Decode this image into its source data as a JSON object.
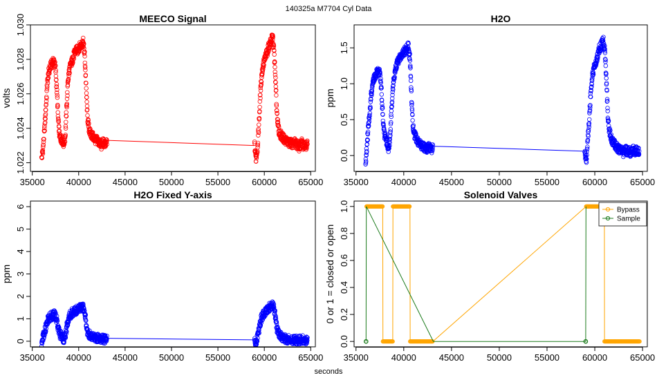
{
  "figure": {
    "title": "140325a    M7704   Cyl Data",
    "xlabel": "seconds"
  },
  "colors": {
    "meeco": "#ff0000",
    "h2o": "#0000ff",
    "bypass": "#ffa500",
    "sample": "#1a7a1a",
    "frame": "#000000"
  },
  "chart_data": [
    {
      "id": "meeco",
      "type": "scatter",
      "title": "MEECO Signal",
      "ylabel": "volts",
      "xlim": [
        34800,
        65500
      ],
      "ylim": [
        1.0215,
        1.03
      ],
      "xticks": [
        35000,
        40000,
        45000,
        50000,
        55000,
        60000,
        65000
      ],
      "yticks": [
        1.022,
        1.024,
        1.026,
        1.028,
        1.03
      ],
      "ytick_decimals": 3,
      "color_key": "meeco",
      "series": [
        {
          "name": "MEECO",
          "x": [
            36000,
            36150,
            36300,
            36450,
            36600,
            36750,
            36900,
            37050,
            37200,
            37350,
            37500,
            37650,
            37800,
            37950,
            38100,
            38250,
            38400,
            38550,
            38700,
            38850,
            39000,
            39150,
            39300,
            39450,
            39600,
            39750,
            39900,
            40050,
            40200,
            40350,
            40500,
            40650,
            40800,
            40950,
            41100,
            41250,
            41400,
            41550,
            41700,
            41850,
            42000,
            42150,
            42300,
            42450,
            42600,
            42750,
            42900,
            43050,
            58950,
            59100,
            59250,
            59400,
            59550,
            59700,
            59850,
            60000,
            60150,
            60300,
            60450,
            60600,
            60750,
            60900,
            61050,
            61200,
            61350,
            61500,
            61650,
            61800,
            61950,
            62100,
            62250,
            62400,
            62550,
            62700,
            62850,
            63000,
            63150,
            63300,
            63450,
            63600,
            63750,
            63900,
            64050,
            64200,
            64350,
            64500,
            64650
          ],
          "y": [
            1.0222,
            1.0228,
            1.0238,
            1.025,
            1.0265,
            1.0272,
            1.0275,
            1.0277,
            1.0278,
            1.0279,
            1.0275,
            1.0262,
            1.0244,
            1.0235,
            1.0234,
            1.0233,
            1.0231,
            1.0235,
            1.0252,
            1.0268,
            1.0274,
            1.0277,
            1.0279,
            1.0282,
            1.0284,
            1.0286,
            1.0285,
            1.0287,
            1.0288,
            1.0289,
            1.029,
            1.0282,
            1.0264,
            1.0246,
            1.024,
            1.0237,
            1.0236,
            1.0235,
            1.0234,
            1.0233,
            1.0233,
            1.0232,
            1.0231,
            1.023,
            1.0232,
            1.0231,
            1.023,
            1.0233,
            1.023,
            1.0222,
            1.0228,
            1.024,
            1.0258,
            1.027,
            1.0276,
            1.0279,
            1.0282,
            1.0284,
            1.0287,
            1.0289,
            1.0291,
            1.0293,
            1.0285,
            1.0268,
            1.025,
            1.024,
            1.0237,
            1.0236,
            1.0235,
            1.0234,
            1.0233,
            1.0233,
            1.0232,
            1.0231,
            1.0232,
            1.023,
            1.0231,
            1.0232,
            1.023,
            1.0231,
            1.0229,
            1.023,
            1.0232,
            1.023,
            1.0231,
            1.023,
            1.0231
          ]
        }
      ]
    },
    {
      "id": "h2o",
      "type": "scatter",
      "title": "H2O",
      "ylabel": "ppm",
      "xlim": [
        34800,
        65500
      ],
      "ylim": [
        -0.22,
        1.82
      ],
      "xticks": [
        35000,
        40000,
        45000,
        50000,
        55000,
        60000,
        65000
      ],
      "yticks": [
        0.0,
        0.5,
        1.0,
        1.5
      ],
      "ytick_decimals": 1,
      "color_key": "h2o",
      "series": [
        {
          "name": "H2O",
          "x": [
            36000,
            36150,
            36300,
            36450,
            36600,
            36750,
            36900,
            37050,
            37200,
            37350,
            37500,
            37650,
            37800,
            37950,
            38100,
            38250,
            38400,
            38550,
            38700,
            38850,
            39000,
            39150,
            39300,
            39450,
            39600,
            39750,
            39900,
            40050,
            40200,
            40350,
            40500,
            40650,
            40800,
            40950,
            41100,
            41250,
            41400,
            41550,
            41700,
            41850,
            42000,
            42150,
            42300,
            42450,
            42600,
            42750,
            42900,
            43050,
            58950,
            59100,
            59250,
            59400,
            59550,
            59700,
            59850,
            60000,
            60150,
            60300,
            60450,
            60600,
            60750,
            60900,
            61050,
            61200,
            61350,
            61500,
            61650,
            61800,
            61950,
            62100,
            62250,
            62400,
            62550,
            62700,
            62850,
            63000,
            63150,
            63300,
            63450,
            63600,
            63750,
            63900,
            64050,
            64200,
            64350,
            64500,
            64650
          ],
          "y": [
            -0.1,
            0.15,
            0.4,
            0.6,
            0.85,
            1.0,
            1.08,
            1.12,
            1.15,
            1.18,
            1.13,
            0.95,
            0.55,
            0.3,
            0.25,
            0.18,
            0.1,
            0.2,
            0.6,
            0.95,
            1.1,
            1.2,
            1.28,
            1.32,
            1.36,
            1.4,
            1.42,
            1.45,
            1.47,
            1.5,
            1.52,
            1.35,
            0.85,
            0.4,
            0.3,
            0.25,
            0.2,
            0.18,
            0.16,
            0.14,
            0.13,
            0.12,
            0.1,
            0.08,
            0.12,
            0.1,
            0.08,
            0.13,
            0.06,
            -0.1,
            0.2,
            0.45,
            0.8,
            1.05,
            1.18,
            1.25,
            1.32,
            1.4,
            1.48,
            1.52,
            1.56,
            1.6,
            1.45,
            1.1,
            0.6,
            0.35,
            0.28,
            0.22,
            0.18,
            0.15,
            0.12,
            0.1,
            0.08,
            0.06,
            0.08,
            0.04,
            0.06,
            0.08,
            0.05,
            0.07,
            0.04,
            0.06,
            0.08,
            0.05,
            0.07,
            0.05,
            0.06
          ]
        }
      ]
    },
    {
      "id": "h2o-fixed",
      "type": "scatter",
      "title": "H2O Fixed Y-axis",
      "ylabel": "ppm",
      "xlim": [
        34800,
        65500
      ],
      "ylim": [
        -0.25,
        6.25
      ],
      "xticks": [
        35000,
        40000,
        45000,
        50000,
        55000,
        60000,
        65000
      ],
      "yticks": [
        0,
        1,
        2,
        3,
        4,
        5,
        6
      ],
      "ytick_decimals": 0,
      "color_key": "h2o",
      "series": [
        {
          "name": "H2O",
          "x": [
            36000,
            36150,
            36300,
            36450,
            36600,
            36750,
            36900,
            37050,
            37200,
            37350,
            37500,
            37650,
            37800,
            37950,
            38100,
            38250,
            38400,
            38550,
            38700,
            38850,
            39000,
            39150,
            39300,
            39450,
            39600,
            39750,
            39900,
            40050,
            40200,
            40350,
            40500,
            40650,
            40800,
            40950,
            41100,
            41250,
            41400,
            41550,
            41700,
            41850,
            42000,
            42150,
            42300,
            42450,
            42600,
            42750,
            42900,
            43050,
            58950,
            59100,
            59250,
            59400,
            59550,
            59700,
            59850,
            60000,
            60150,
            60300,
            60450,
            60600,
            60750,
            60900,
            61050,
            61200,
            61350,
            61500,
            61650,
            61800,
            61950,
            62100,
            62250,
            62400,
            62550,
            62700,
            62850,
            63000,
            63150,
            63300,
            63450,
            63600,
            63750,
            63900,
            64050,
            64200,
            64350,
            64500,
            64650
          ],
          "y": [
            -0.1,
            0.15,
            0.4,
            0.6,
            0.85,
            1.0,
            1.08,
            1.12,
            1.15,
            1.18,
            1.13,
            0.95,
            0.55,
            0.3,
            0.25,
            0.18,
            0.1,
            0.2,
            0.6,
            0.95,
            1.1,
            1.2,
            1.28,
            1.32,
            1.36,
            1.4,
            1.42,
            1.45,
            1.47,
            1.5,
            1.52,
            1.35,
            0.85,
            0.4,
            0.3,
            0.25,
            0.2,
            0.18,
            0.16,
            0.14,
            0.13,
            0.12,
            0.1,
            0.08,
            0.12,
            0.1,
            0.08,
            0.13,
            0.06,
            -0.1,
            0.2,
            0.45,
            0.8,
            1.05,
            1.18,
            1.25,
            1.32,
            1.4,
            1.48,
            1.52,
            1.56,
            1.6,
            1.45,
            1.1,
            0.6,
            0.35,
            0.28,
            0.22,
            0.18,
            0.15,
            0.12,
            0.1,
            0.08,
            0.06,
            0.08,
            0.04,
            0.06,
            0.08,
            0.05,
            0.07,
            0.04,
            0.06,
            0.08,
            0.05,
            0.07,
            0.05,
            0.06
          ]
        }
      ]
    },
    {
      "id": "solenoid",
      "type": "line",
      "title": "Solenoid Valves",
      "ylabel": "0 or 1 = closed or open",
      "xlim": [
        34800,
        65500
      ],
      "ylim": [
        -0.04,
        1.04
      ],
      "xticks": [
        35000,
        40000,
        45000,
        50000,
        55000,
        60000,
        65000
      ],
      "yticks": [
        0.0,
        0.2,
        0.4,
        0.6,
        0.8,
        1.0
      ],
      "ytick_decimals": 1,
      "legend": {
        "position": "top-right",
        "entries": [
          "Bypass",
          "Sample"
        ]
      },
      "series": [
        {
          "name": "Bypass",
          "color_key": "bypass",
          "x": [
            36100,
            37800,
            37820,
            38850,
            38870,
            40650,
            40670,
            43050,
            59100,
            61000,
            61020,
            64700
          ],
          "y": [
            1,
            1,
            0,
            0,
            1,
            1,
            0,
            0,
            1,
            1,
            0,
            0
          ],
          "marker_step": 60
        },
        {
          "name": "Sample",
          "color_key": "sample",
          "x": [
            36050,
            36080,
            43100,
            59050,
            59080
          ],
          "y": [
            0,
            1,
            0,
            0,
            1
          ],
          "markers": [
            [
              36050,
              0
            ],
            [
              59050,
              0
            ]
          ]
        }
      ]
    }
  ]
}
